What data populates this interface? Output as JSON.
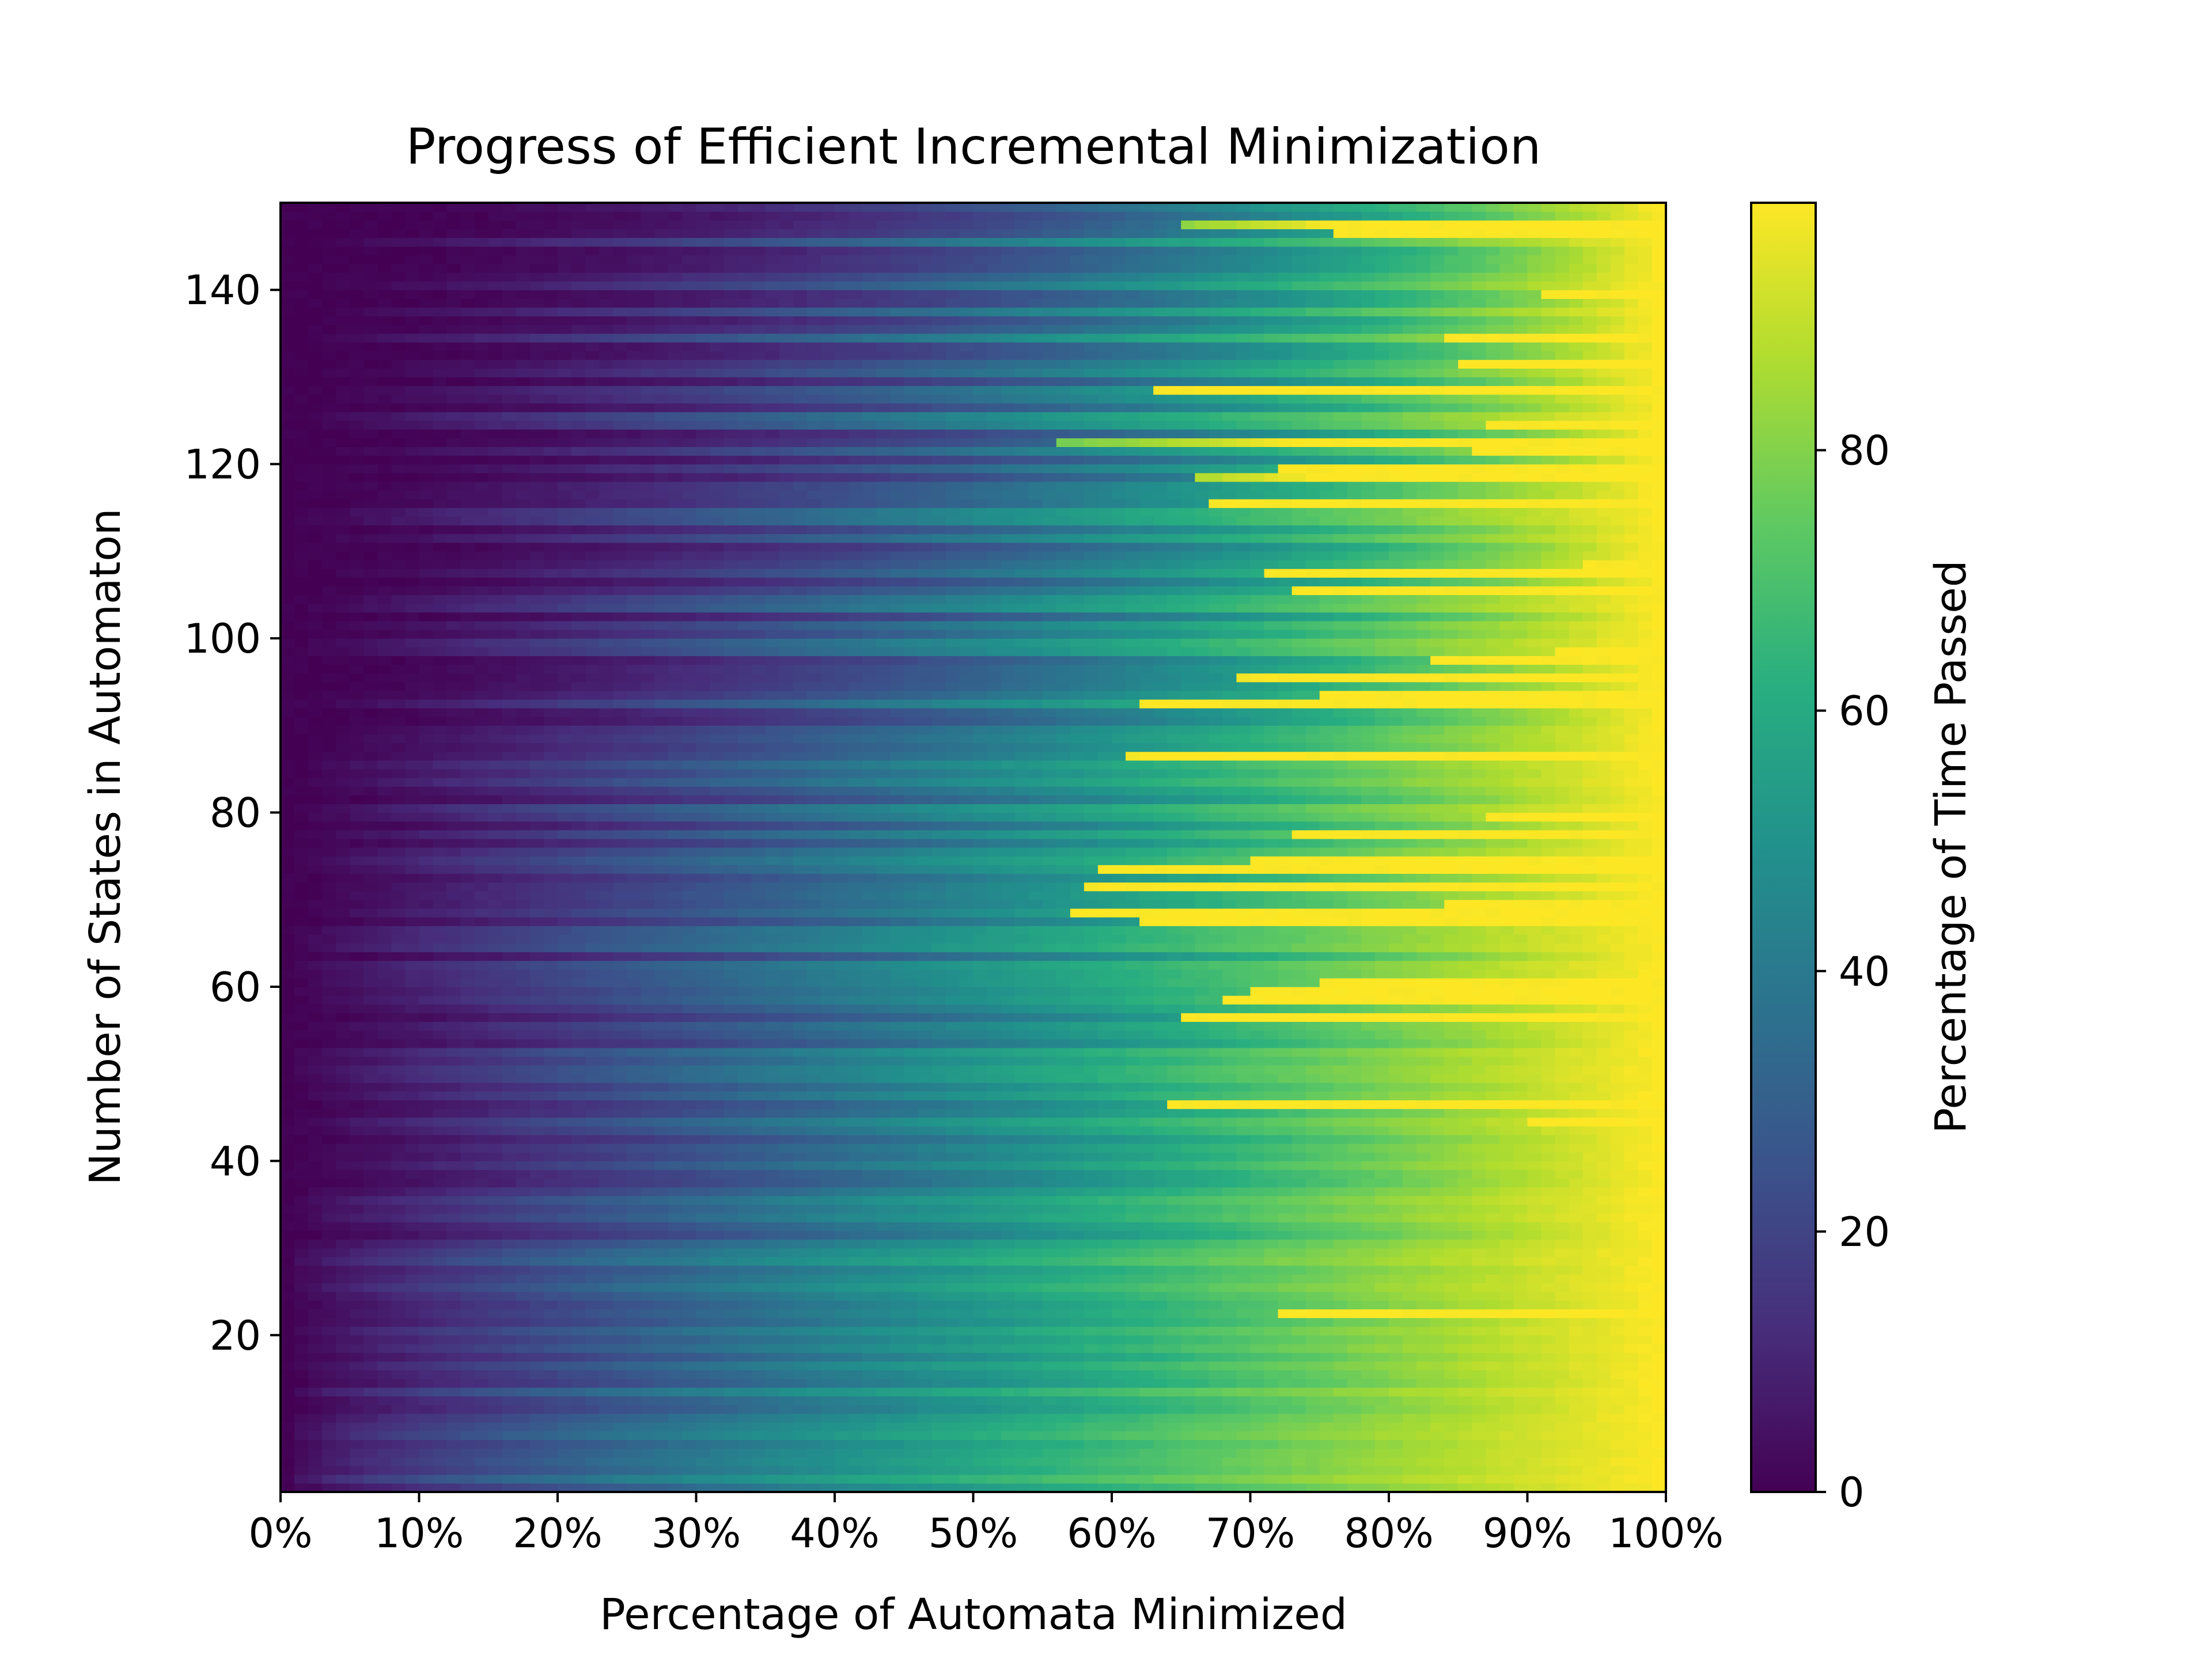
{
  "chart_data": {
    "type": "heatmap",
    "title": "Progress of Efficient Incremental Minimization",
    "xlabel": "Percentage of Automata Minimized",
    "ylabel": "Number of States in Automaton",
    "x_ticks": [
      "0%",
      "10%",
      "20%",
      "30%",
      "40%",
      "50%",
      "60%",
      "70%",
      "80%",
      "90%",
      "100%"
    ],
    "y_ticks": [
      20,
      40,
      60,
      80,
      100,
      120,
      140
    ],
    "xlim": [
      0,
      100
    ],
    "ylim": [
      2,
      150
    ],
    "row_count": 148,
    "col_count": 100,
    "colormap": "viridis",
    "colorbar": {
      "label": "Percentage of Time Passed",
      "ticks": [
        0,
        20,
        40,
        60,
        80
      ],
      "range": [
        0,
        99
      ]
    },
    "value_note": "Cell values rise from about 0 at 0% to about 99 at 100% for most rows; larger automata rise more unevenly with abrupt jumps near the right edge."
  }
}
